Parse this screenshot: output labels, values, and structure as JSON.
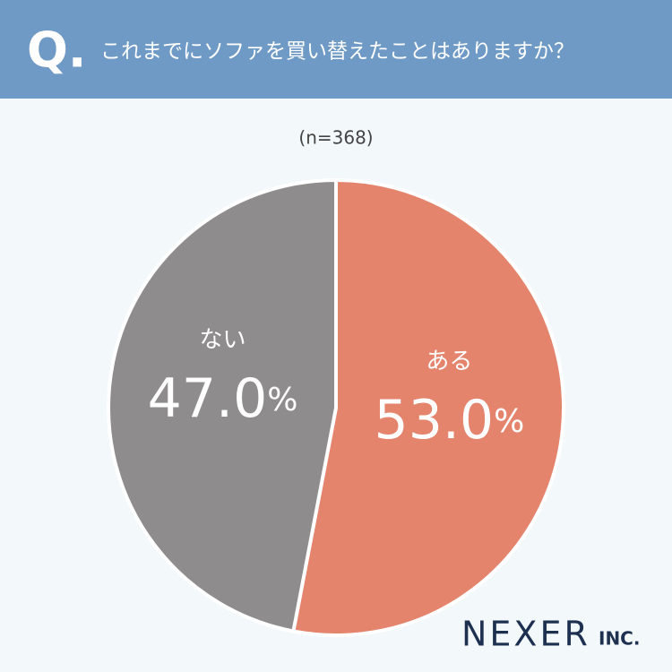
{
  "header": {
    "marker": "Q.",
    "question": "これまでにソファを買い替えたことはありますか？"
  },
  "chart_data": {
    "type": "pie",
    "subtitle": "(n=368)",
    "categories": [
      "ある",
      "ない"
    ],
    "values": [
      53.0,
      47.0
    ],
    "value_labels": [
      "53.0%",
      "47.0%"
    ],
    "colors": [
      "#e5846c",
      "#8e8c8d"
    ],
    "start_angle": 90,
    "direction": "clockwise"
  },
  "logo": {
    "name": "NEXER",
    "suffix": "INC."
  }
}
